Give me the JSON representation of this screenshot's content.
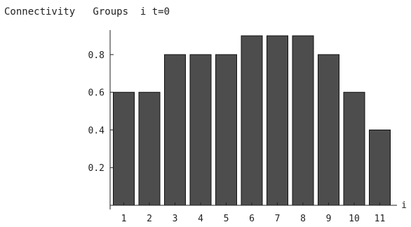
{
  "chart_data": {
    "type": "bar",
    "title": "Connectivity   Groups  i t=0",
    "xlabel": "i",
    "ylabel": "",
    "categories": [
      "1",
      "2",
      "3",
      "4",
      "5",
      "6",
      "7",
      "8",
      "9",
      "10",
      "11"
    ],
    "values": [
      0.6,
      0.6,
      0.8,
      0.8,
      0.8,
      0.9,
      0.9,
      0.9,
      0.8,
      0.6,
      0.4
    ],
    "ylim": [
      0,
      0.93
    ],
    "yticks": [
      0.2,
      0.4,
      0.6,
      0.8
    ],
    "ytick_labels": [
      "0.2",
      "0.4",
      "0.6",
      "0.8"
    ],
    "grid": false,
    "bar_color": "#4d4d4d",
    "bar_edge_color": "#111111"
  }
}
